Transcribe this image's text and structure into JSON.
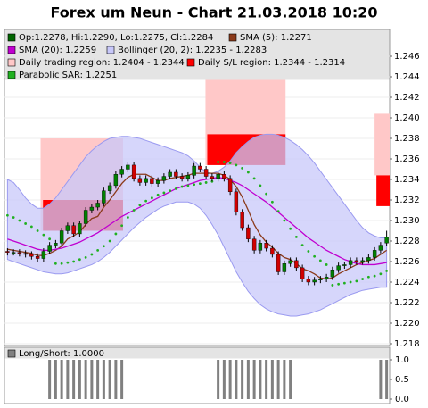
{
  "chart_data": [
    {
      "type": "candlestick",
      "title": "Forex um Neun - Chart 21.03.2018 10:20",
      "name": "Op:1.2278, Hi:1.2290, Lo:1.2275, Cl:1.2284",
      "up_color": "#008000",
      "down_color": "#d00000",
      "legend_color": "#006400",
      "categories": [
        null,
        null,
        null,
        null,
        null,
        null,
        null,
        null,
        null,
        null,
        null,
        null,
        null,
        null,
        null,
        null,
        null,
        null,
        null,
        null,
        null,
        null,
        null,
        null,
        null,
        null,
        null,
        null,
        null,
        null,
        null,
        null,
        null,
        null,
        null,
        null,
        null,
        null,
        null,
        null,
        null,
        null,
        null,
        null,
        null,
        null,
        null,
        null,
        null,
        null,
        null,
        null,
        null,
        null,
        null,
        null,
        null,
        null,
        null,
        null,
        null,
        null,
        null,
        null
      ],
      "open": [
        1.227,
        1.2269,
        1.2269,
        1.2268,
        1.2267,
        1.2265,
        1.2263,
        1.227,
        1.2276,
        1.2278,
        1.229,
        1.2295,
        1.2287,
        1.2297,
        1.231,
        1.2313,
        1.2317,
        1.2329,
        1.2334,
        1.2345,
        1.235,
        1.2354,
        1.2341,
        1.2337,
        1.2341,
        1.2336,
        1.2339,
        1.2343,
        1.2347,
        1.2343,
        1.2341,
        1.2344,
        1.2353,
        1.235,
        1.2343,
        1.2341,
        1.2345,
        1.2341,
        1.2328,
        1.2308,
        1.2293,
        1.2282,
        1.2271,
        1.2278,
        1.2273,
        1.2267,
        1.225,
        1.2258,
        1.2261,
        1.2254,
        1.2243,
        1.224,
        1.2242,
        1.2243,
        1.2245,
        1.2252,
        1.2256,
        1.2257,
        1.2261,
        1.226,
        1.2261,
        1.2264,
        1.2271,
        1.2278
      ],
      "high": [
        1.2273,
        1.2272,
        1.2272,
        1.2271,
        1.227,
        1.2268,
        1.2273,
        1.2279,
        1.2281,
        1.2293,
        1.2298,
        1.2298,
        1.23,
        1.2313,
        1.2316,
        1.232,
        1.2332,
        1.2337,
        1.2348,
        1.2353,
        1.2357,
        1.2357,
        1.2344,
        1.2344,
        1.2344,
        1.2342,
        1.2346,
        1.235,
        1.235,
        1.2346,
        1.2347,
        1.2356,
        1.2356,
        1.2353,
        1.2346,
        1.2348,
        1.2348,
        1.2344,
        1.2331,
        1.2311,
        1.2296,
        1.2285,
        1.2281,
        1.2281,
        1.2276,
        1.227,
        1.2261,
        1.2264,
        1.2264,
        1.2257,
        1.2246,
        1.2245,
        1.2246,
        1.2248,
        1.2255,
        1.2259,
        1.226,
        1.2264,
        1.2264,
        1.2264,
        1.2267,
        1.2274,
        1.2279,
        1.229
      ],
      "low": [
        1.2266,
        1.2266,
        1.2265,
        1.2264,
        1.2262,
        1.226,
        1.226,
        1.2267,
        1.2273,
        1.2275,
        1.2287,
        1.2284,
        1.2284,
        1.2294,
        1.2307,
        1.231,
        1.2314,
        1.2326,
        1.2331,
        1.2342,
        1.2347,
        1.2338,
        1.2334,
        1.2334,
        1.2333,
        1.2333,
        1.2336,
        1.234,
        1.234,
        1.2338,
        1.2338,
        1.2341,
        1.2347,
        1.234,
        1.2338,
        1.2338,
        1.2338,
        1.2325,
        1.2305,
        1.229,
        1.2279,
        1.2268,
        1.2268,
        1.227,
        1.2264,
        1.2247,
        1.2247,
        1.2255,
        1.2251,
        1.224,
        1.2237,
        1.2237,
        1.2239,
        1.224,
        1.2242,
        1.2249,
        1.2253,
        1.2254,
        1.2257,
        1.2257,
        1.2258,
        1.2261,
        1.2268,
        1.2275
      ],
      "close": [
        1.2269,
        1.2269,
        1.2268,
        1.2267,
        1.2265,
        1.2263,
        1.227,
        1.2276,
        1.2278,
        1.229,
        1.2295,
        1.2287,
        1.2297,
        1.231,
        1.2313,
        1.2317,
        1.2329,
        1.2334,
        1.2345,
        1.235,
        1.2354,
        1.2341,
        1.2337,
        1.2341,
        1.2336,
        1.2339,
        1.2343,
        1.2347,
        1.2343,
        1.2341,
        1.2344,
        1.2353,
        1.235,
        1.2343,
        1.2341,
        1.2345,
        1.2341,
        1.2328,
        1.2308,
        1.2293,
        1.2282,
        1.2271,
        1.2278,
        1.2273,
        1.2267,
        1.225,
        1.2258,
        1.2261,
        1.2254,
        1.2243,
        1.224,
        1.2242,
        1.2243,
        1.2245,
        1.2252,
        1.2256,
        1.2257,
        1.2261,
        1.226,
        1.2261,
        1.2264,
        1.2271,
        1.2276,
        1.2284
      ],
      "series": [
        {
          "name": "SMA (5): 1.2271",
          "color": "#8b3a1a",
          "values": [
            1.2272,
            1.2271,
            1.227,
            1.2269,
            1.2268,
            1.2266,
            1.2266,
            1.2268,
            1.2271,
            1.2275,
            1.2282,
            1.2285,
            1.2289,
            1.2296,
            1.2302,
            1.2304,
            1.2313,
            1.232,
            1.2328,
            1.2336,
            1.2342,
            1.2345,
            1.2345,
            1.2345,
            1.2342,
            1.2339,
            1.2339,
            1.2341,
            1.2342,
            1.2343,
            1.2344,
            1.2346,
            1.2346,
            1.2346,
            1.2346,
            1.2346,
            1.2344,
            1.234,
            1.2333,
            1.2323,
            1.231,
            1.2296,
            1.2286,
            1.2279,
            1.2274,
            1.2268,
            1.2264,
            1.2262,
            1.2258,
            1.2253,
            1.2251,
            1.2248,
            1.2244,
            1.2243,
            1.2244,
            1.2248,
            1.2251,
            1.2254,
            1.2257,
            1.2259,
            1.2261,
            1.2263,
            1.2267,
            1.2271
          ]
        },
        {
          "name": "SMA (20): 1.2259",
          "color": "#c000d0",
          "values": [
            1.2282,
            1.228,
            1.2278,
            1.2276,
            1.2274,
            1.2272,
            1.2271,
            1.2271,
            1.2272,
            1.2273,
            1.2275,
            1.2277,
            1.2279,
            1.2282,
            1.2285,
            1.2288,
            1.2292,
            1.2296,
            1.23,
            1.2304,
            1.2307,
            1.231,
            1.2313,
            1.2316,
            1.2319,
            1.2322,
            1.2325,
            1.2328,
            1.2331,
            1.2333,
            1.2335,
            1.2337,
            1.2339,
            1.234,
            1.2341,
            1.2342,
            1.2341,
            1.2339,
            1.2337,
            1.2334,
            1.233,
            1.2326,
            1.2322,
            1.2318,
            1.2313,
            1.2308,
            1.2303,
            1.2298,
            1.2293,
            1.2288,
            1.2283,
            1.2279,
            1.2275,
            1.2271,
            1.2268,
            1.2265,
            1.2262,
            1.226,
            1.2258,
            1.2257,
            1.2257,
            1.2257,
            1.2258,
            1.2259
          ]
        }
      ],
      "bollinger": {
        "name": "Bollinger (20, 2): 1.2235 - 1.2283",
        "color": "#c8c8fa",
        "edge_color": "#9a9af0",
        "upper": [
          1.234,
          1.2337,
          1.233,
          1.2322,
          1.2316,
          1.2312,
          1.2312,
          1.2316,
          1.2322,
          1.233,
          1.2338,
          1.2346,
          1.2354,
          1.2362,
          1.2368,
          1.2373,
          1.2377,
          1.238,
          1.2381,
          1.2382,
          1.2382,
          1.2381,
          1.238,
          1.2378,
          1.2376,
          1.2374,
          1.2372,
          1.237,
          1.2368,
          1.2366,
          1.2363,
          1.2358,
          1.2352,
          1.2347,
          1.2346,
          1.2348,
          1.2352,
          1.2358,
          1.2366,
          1.2372,
          1.2377,
          1.2381,
          1.2383,
          1.2384,
          1.2384,
          1.2383,
          1.2381,
          1.2378,
          1.2374,
          1.2369,
          1.2363,
          1.2356,
          1.2348,
          1.234,
          1.2332,
          1.2324,
          1.2316,
          1.2308,
          1.23,
          1.2293,
          1.2288,
          1.2285,
          1.2283,
          1.2283
        ],
        "lower": [
          1.2262,
          1.226,
          1.2258,
          1.2256,
          1.2254,
          1.2252,
          1.225,
          1.2249,
          1.2248,
          1.2248,
          1.2249,
          1.2251,
          1.2253,
          1.2255,
          1.2257,
          1.226,
          1.2264,
          1.2269,
          1.2275,
          1.2281,
          1.2287,
          1.2293,
          1.2298,
          1.2303,
          1.2307,
          1.2311,
          1.2314,
          1.2316,
          1.2318,
          1.2318,
          1.2318,
          1.2316,
          1.2312,
          1.2305,
          1.2296,
          1.2286,
          1.2274,
          1.2262,
          1.225,
          1.224,
          1.2231,
          1.2224,
          1.2218,
          1.2214,
          1.2211,
          1.2209,
          1.2208,
          1.2207,
          1.2207,
          1.2208,
          1.2209,
          1.2211,
          1.2213,
          1.2216,
          1.2219,
          1.2222,
          1.2225,
          1.2228,
          1.223,
          1.2232,
          1.2233,
          1.2234,
          1.2235,
          1.2235
        ]
      },
      "sar": {
        "name": "Parabolic SAR: 1.2251",
        "color": "#20b020",
        "values": [
          1.2305,
          1.2303,
          1.23,
          1.2297,
          1.2294,
          1.229,
          1.2286,
          1.2282,
          1.2258,
          1.2258,
          1.2259,
          1.226,
          1.2262,
          1.2264,
          1.2267,
          1.2271,
          1.2275,
          1.228,
          1.2287,
          1.2295,
          1.2303,
          1.231,
          1.2315,
          1.2319,
          1.2322,
          1.2325,
          1.2327,
          1.2329,
          1.2331,
          1.2333,
          1.2334,
          1.2335,
          1.2336,
          1.2337,
          1.2338,
          1.2357,
          1.2357,
          1.2356,
          1.2354,
          1.2351,
          1.2347,
          1.2341,
          1.2334,
          1.2326,
          1.2318,
          1.2309,
          1.23,
          1.2292,
          1.2284,
          1.2276,
          1.227,
          1.2265,
          1.2261,
          1.2257,
          1.2237,
          1.2238,
          1.2239,
          1.224,
          1.2241,
          1.2243,
          1.2245,
          1.2246,
          1.2248,
          1.2251
        ]
      },
      "regions": [
        {
          "name": "Daily trading region: 1.2404 - 1.2344",
          "color": "#ffc8c8",
          "bands": [
            {
              "start": 5.5,
              "end": 19.2,
              "top": 1.238,
              "bottom": 1.229
            },
            {
              "start": 32.9,
              "end": 46.2,
              "top": 1.2444,
              "bottom": 1.2354
            },
            {
              "start": 61.0,
              "end": 63.5,
              "top": 1.2404,
              "bottom": 1.2344
            }
          ]
        },
        {
          "name": "Daily S/L region: 1.2344 - 1.2314",
          "color": "#ff0000",
          "bands": [
            {
              "start": 5.9,
              "end": 19.2,
              "top": 1.232,
              "bottom": 1.229
            },
            {
              "start": 33.2,
              "end": 46.2,
              "top": 1.2384,
              "bottom": 1.2354
            },
            {
              "start": 61.3,
              "end": 63.5,
              "top": 1.2344,
              "bottom": 1.2314
            }
          ]
        }
      ],
      "ylim": [
        1.218,
        1.246
      ],
      "yticks": [
        {
          "value": 1.218,
          "label": "1.218"
        },
        {
          "value": 1.22,
          "label": "1.220"
        },
        {
          "value": 1.222,
          "label": "1.222"
        },
        {
          "value": 1.224,
          "label": "1.224"
        },
        {
          "value": 1.226,
          "label": "1.226"
        },
        {
          "value": 1.228,
          "label": "1.228"
        },
        {
          "value": 1.23,
          "label": "1.230"
        },
        {
          "value": 1.232,
          "label": "1.232"
        },
        {
          "value": 1.234,
          "label": "1.234"
        },
        {
          "value": 1.236,
          "label": "1.236"
        },
        {
          "value": 1.238,
          "label": "1.238"
        },
        {
          "value": 1.24,
          "label": "1.240"
        },
        {
          "value": 1.242,
          "label": "1.242"
        },
        {
          "value": 1.244,
          "label": "1.244"
        },
        {
          "value": 1.246,
          "label": "1.246"
        }
      ],
      "grid": true
    },
    {
      "type": "bar",
      "name": "Long/Short: 1.0000",
      "color": "#808080",
      "values": [
        0,
        0,
        0,
        0,
        0,
        0,
        0,
        1,
        1,
        1,
        1,
        1,
        1,
        1,
        1,
        1,
        1,
        1,
        1,
        1,
        0,
        0,
        0,
        0,
        0,
        0,
        0,
        0,
        0,
        0,
        0,
        0,
        0,
        0,
        0,
        1,
        1,
        1,
        1,
        1,
        1,
        1,
        1,
        1,
        1,
        1,
        1,
        1,
        0,
        0,
        0,
        0,
        0,
        0,
        0,
        0,
        0,
        0,
        0,
        0,
        0,
        0,
        1,
        1
      ],
      "ylim": [
        0,
        1
      ],
      "yticks": [
        {
          "value": 1,
          "label": "1.0"
        },
        {
          "value": 0.5,
          "label": "0.5"
        },
        {
          "value": 0,
          "label": "0.0"
        }
      ]
    }
  ]
}
